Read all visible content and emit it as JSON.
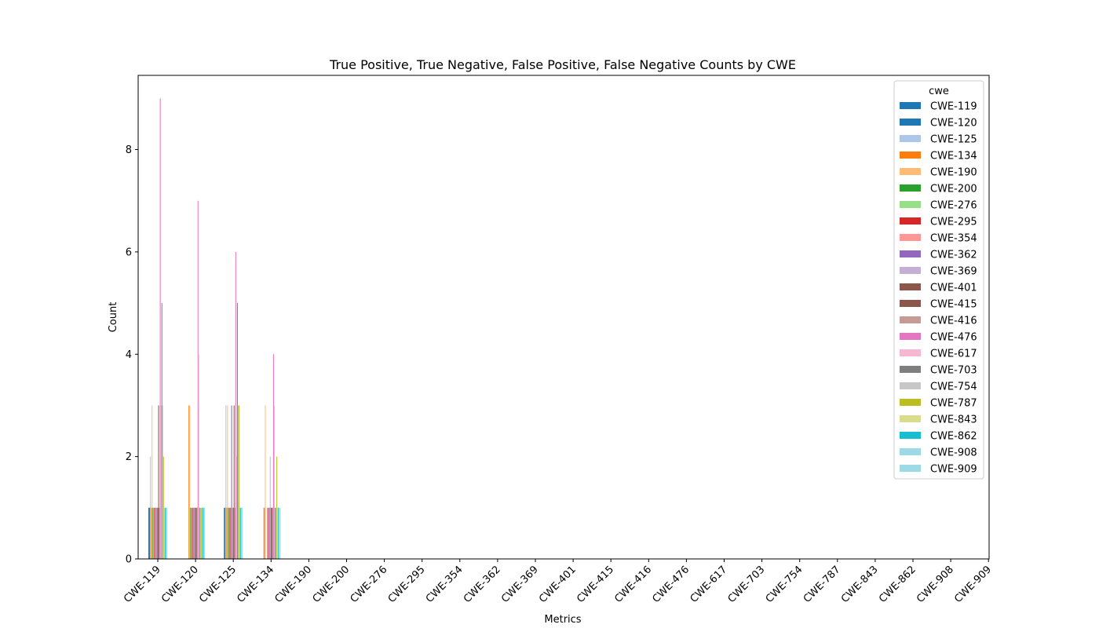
{
  "chart_data": {
    "type": "bar",
    "title": "True Positive, True Negative, False Positive, False Negative Counts by CWE",
    "xlabel": "Metrics",
    "ylabel": "Count",
    "ylim": [
      0,
      9.45
    ],
    "yticks": [
      0,
      2,
      4,
      6,
      8
    ],
    "grid": false,
    "legend_title": "cwe",
    "legend_position": "top-right",
    "categories": [
      "CWE-119",
      "CWE-120",
      "CWE-125",
      "CWE-134",
      "CWE-190",
      "CWE-200",
      "CWE-276",
      "CWE-295",
      "CWE-354",
      "CWE-362",
      "CWE-369",
      "CWE-401",
      "CWE-415",
      "CWE-416",
      "CWE-476",
      "CWE-617",
      "CWE-703",
      "CWE-754",
      "CWE-787",
      "CWE-843",
      "CWE-862",
      "CWE-908",
      "CWE-909"
    ],
    "series": [
      {
        "name": "CWE-119",
        "color": "#1f77b4",
        "values": [
          1,
          0,
          1,
          0,
          0,
          0,
          0,
          0,
          0,
          0,
          0,
          0,
          0,
          0,
          0,
          0,
          0,
          0,
          0,
          0,
          0,
          0,
          0
        ]
      },
      {
        "name": "CWE-120",
        "color": "#1f77b4",
        "values": [
          1,
          0,
          1,
          0,
          0,
          0,
          0,
          0,
          0,
          0,
          0,
          0,
          0,
          0,
          0,
          0,
          0,
          0,
          0,
          0,
          0,
          0,
          0
        ]
      },
      {
        "name": "CWE-125",
        "color": "#aec7e8",
        "values": [
          2,
          0,
          3,
          1,
          0,
          0,
          0,
          0,
          0,
          0,
          0,
          0,
          0,
          0,
          0,
          0,
          0,
          0,
          0,
          0,
          0,
          0,
          0
        ]
      },
      {
        "name": "CWE-134",
        "color": "#ff7f0e",
        "values": [
          1,
          3,
          1,
          1,
          0,
          0,
          0,
          0,
          0,
          0,
          0,
          0,
          0,
          0,
          0,
          0,
          0,
          0,
          0,
          0,
          0,
          0,
          0
        ]
      },
      {
        "name": "CWE-190",
        "color": "#ffbb78",
        "values": [
          3,
          3,
          3,
          3,
          0,
          0,
          0,
          0,
          0,
          0,
          0,
          0,
          0,
          0,
          0,
          0,
          0,
          0,
          0,
          0,
          0,
          0,
          0
        ]
      },
      {
        "name": "CWE-200",
        "color": "#2ca02c",
        "values": [
          1,
          1,
          1,
          0,
          0,
          0,
          0,
          0,
          0,
          0,
          0,
          0,
          0,
          0,
          0,
          0,
          0,
          0,
          0,
          0,
          0,
          0,
          0
        ]
      },
      {
        "name": "CWE-276",
        "color": "#98df8a",
        "values": [
          1,
          1,
          1,
          0,
          0,
          0,
          0,
          0,
          0,
          0,
          0,
          0,
          0,
          0,
          0,
          0,
          0,
          0,
          0,
          0,
          0,
          0,
          0
        ]
      },
      {
        "name": "CWE-295",
        "color": "#d62728",
        "values": [
          1,
          1,
          1,
          1,
          0,
          0,
          0,
          0,
          0,
          0,
          0,
          0,
          0,
          0,
          0,
          0,
          0,
          0,
          0,
          0,
          0,
          0,
          0
        ]
      },
      {
        "name": "CWE-354",
        "color": "#ff9896",
        "values": [
          1,
          1,
          1,
          1,
          0,
          0,
          0,
          0,
          0,
          0,
          0,
          0,
          0,
          0,
          0,
          0,
          0,
          0,
          0,
          0,
          0,
          0,
          0
        ]
      },
      {
        "name": "CWE-362",
        "color": "#9467bd",
        "values": [
          1,
          1,
          3,
          1,
          0,
          0,
          0,
          0,
          0,
          0,
          0,
          0,
          0,
          0,
          0,
          0,
          0,
          0,
          0,
          0,
          0,
          0,
          0
        ]
      },
      {
        "name": "CWE-369",
        "color": "#c5b0d5",
        "values": [
          1,
          1,
          1,
          2,
          0,
          0,
          0,
          0,
          0,
          0,
          0,
          0,
          0,
          0,
          0,
          0,
          0,
          0,
          0,
          0,
          0,
          0,
          0
        ]
      },
      {
        "name": "CWE-401",
        "color": "#8c564b",
        "values": [
          1,
          1,
          1,
          1,
          0,
          0,
          0,
          0,
          0,
          0,
          0,
          0,
          0,
          0,
          0,
          0,
          0,
          0,
          0,
          0,
          0,
          0,
          0
        ]
      },
      {
        "name": "CWE-415",
        "color": "#8c564b",
        "values": [
          3,
          1,
          3,
          1,
          0,
          0,
          0,
          0,
          0,
          0,
          0,
          0,
          0,
          0,
          0,
          0,
          0,
          0,
          0,
          0,
          0,
          0,
          0
        ]
      },
      {
        "name": "CWE-416",
        "color": "#c49c94",
        "values": [
          1,
          1,
          1,
          1,
          0,
          0,
          0,
          0,
          0,
          0,
          0,
          0,
          0,
          0,
          0,
          0,
          0,
          0,
          0,
          0,
          0,
          0,
          0
        ]
      },
      {
        "name": "CWE-476",
        "color": "#e377c2",
        "values": [
          9,
          7,
          6,
          4,
          0,
          0,
          0,
          0,
          0,
          0,
          0,
          0,
          0,
          0,
          0,
          0,
          0,
          0,
          0,
          0,
          0,
          0,
          0
        ]
      },
      {
        "name": "CWE-617",
        "color": "#f7b6d2",
        "values": [
          3,
          4,
          2,
          3,
          0,
          0,
          0,
          0,
          0,
          0,
          0,
          0,
          0,
          0,
          0,
          0,
          0,
          0,
          0,
          0,
          0,
          0,
          0
        ]
      },
      {
        "name": "CWE-703",
        "color": "#7f7f7f",
        "values": [
          5,
          1,
          5,
          1,
          0,
          0,
          0,
          0,
          0,
          0,
          0,
          0,
          0,
          0,
          0,
          0,
          0,
          0,
          0,
          0,
          0,
          0,
          0
        ]
      },
      {
        "name": "CWE-754",
        "color": "#c7c7c7",
        "values": [
          3,
          1,
          3,
          1,
          0,
          0,
          0,
          0,
          0,
          0,
          0,
          0,
          0,
          0,
          0,
          0,
          0,
          0,
          0,
          0,
          0,
          0,
          0
        ]
      },
      {
        "name": "CWE-787",
        "color": "#bcbd22",
        "values": [
          2,
          1,
          3,
          2,
          0,
          0,
          0,
          0,
          0,
          0,
          0,
          0,
          0,
          0,
          0,
          0,
          0,
          0,
          0,
          0,
          0,
          0,
          0
        ]
      },
      {
        "name": "CWE-843",
        "color": "#dbdb8d",
        "values": [
          1,
          1,
          1,
          1,
          0,
          0,
          0,
          0,
          0,
          0,
          0,
          0,
          0,
          0,
          0,
          0,
          0,
          0,
          0,
          0,
          0,
          0,
          0
        ]
      },
      {
        "name": "CWE-862",
        "color": "#17becf",
        "values": [
          1,
          1,
          1,
          1,
          0,
          0,
          0,
          0,
          0,
          0,
          0,
          0,
          0,
          0,
          0,
          0,
          0,
          0,
          0,
          0,
          0,
          0,
          0
        ]
      },
      {
        "name": "CWE-908",
        "color": "#9edae5",
        "values": [
          1,
          1,
          1,
          1,
          0,
          0,
          0,
          0,
          0,
          0,
          0,
          0,
          0,
          0,
          0,
          0,
          0,
          0,
          0,
          0,
          0,
          0,
          0
        ]
      },
      {
        "name": "CWE-909",
        "color": "#9edae5",
        "values": [
          1,
          1,
          1,
          1,
          0,
          0,
          0,
          0,
          0,
          0,
          0,
          0,
          0,
          0,
          0,
          0,
          0,
          0,
          0,
          0,
          0,
          0,
          0
        ]
      }
    ]
  }
}
